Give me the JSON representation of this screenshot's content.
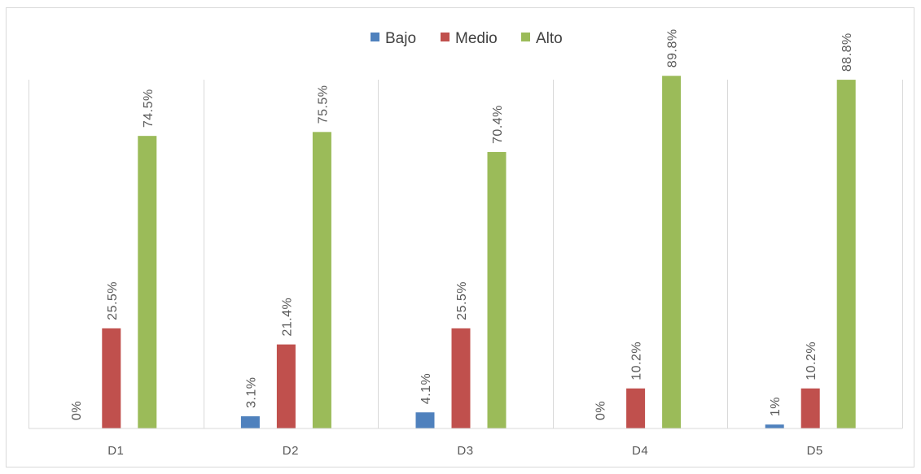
{
  "chart_data": {
    "type": "bar",
    "title": "",
    "xlabel": "",
    "ylabel": "",
    "categories": [
      "D1",
      "D2",
      "D3",
      "D4",
      "D5"
    ],
    "series": [
      {
        "name": "Bajo",
        "color": "#4f81bd",
        "values": [
          0,
          3.1,
          4.1,
          0,
          1
        ],
        "labels": [
          "0%",
          "3.1%",
          "4.1%",
          "0%",
          "1%"
        ]
      },
      {
        "name": "Medio",
        "color": "#c0504d",
        "values": [
          25.5,
          21.4,
          25.5,
          10.2,
          10.2
        ],
        "labels": [
          "25.5%",
          "21.4%",
          "25.5%",
          "10.2%",
          "10.2%"
        ]
      },
      {
        "name": "Alto",
        "color": "#9bbb59",
        "values": [
          74.5,
          75.5,
          70.4,
          89.8,
          88.8
        ],
        "labels": [
          "74.5%",
          "75.5%",
          "70.4%",
          "89.8%",
          "88.8%"
        ]
      }
    ],
    "ylim": [
      0,
      100
    ],
    "grid": false,
    "category_dividers": true,
    "legend_position": "top",
    "data_label_rotation": "vertical"
  }
}
